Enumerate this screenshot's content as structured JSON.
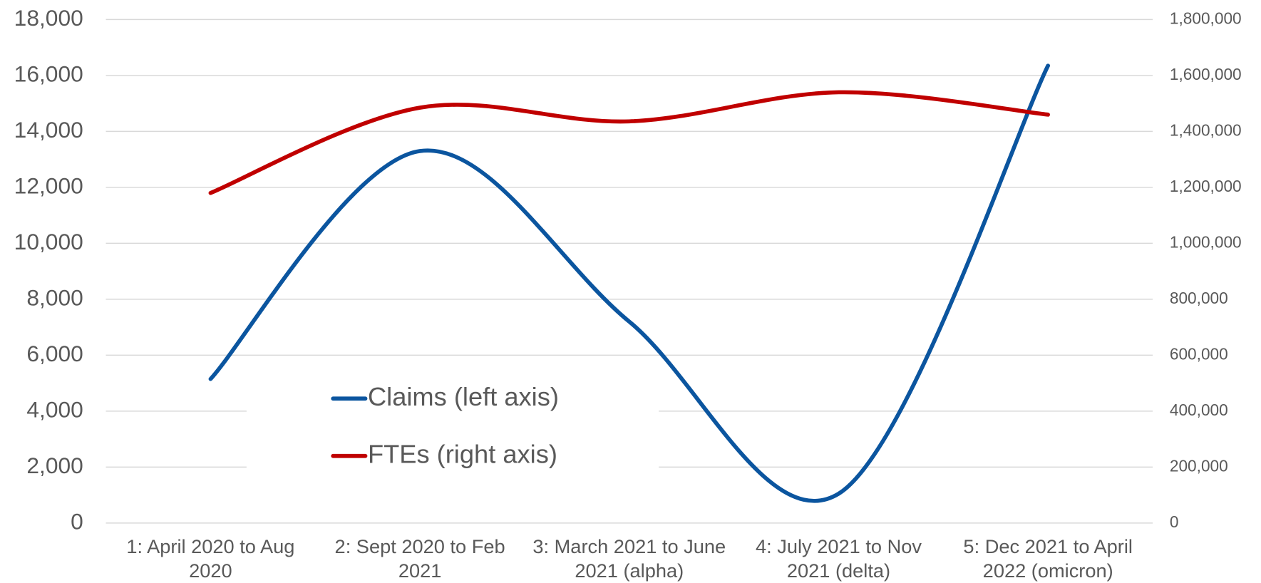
{
  "chart_data": {
    "type": "line",
    "categories": [
      "1: April 2020 to Aug 2020",
      "2: Sept 2020 to Feb 2021",
      "3: March 2021 to June 2021 (alpha)",
      "4: July 2021 to Nov 2021 (delta)",
      "5: Dec 2021 to April 2022 (omicron)"
    ],
    "series": [
      {
        "name": "Claims (left axis)",
        "color": "#0b559f",
        "values": [
          5150,
          13300,
          7200,
          1050,
          16350
        ]
      },
      {
        "name": "FTEs (right axis)",
        "color": "#c00000",
        "axis": "y2",
        "values": [
          1180000,
          1485000,
          1436000,
          1540000,
          1460000
        ]
      }
    ],
    "ylim": [
      0,
      18000
    ],
    "yticks": [
      0,
      {
        "value": 2000,
        "label": "2,000"
      },
      {
        "value": 4000,
        "label": "4,000"
      },
      {
        "value": 6000,
        "label": "6,000"
      },
      {
        "value": 8000,
        "label": "8,000"
      },
      {
        "value": 10000,
        "label": "10,000"
      },
      {
        "value": 12000,
        "label": "12,000"
      },
      {
        "value": 14000,
        "label": "14,000"
      },
      {
        "value": 16000,
        "label": "16,000"
      },
      {
        "value": 18000,
        "label": "18,000"
      }
    ],
    "y2lim": [
      0,
      1800000
    ],
    "y2ticks": [
      0,
      {
        "value": 200000,
        "label": "200,000"
      },
      {
        "value": 400000,
        "label": "400,000"
      },
      {
        "value": 600000,
        "label": "600,000"
      },
      {
        "value": 800000,
        "label": "800,000"
      },
      {
        "value": 1000000,
        "label": "1,000,000"
      },
      {
        "value": 1200000,
        "label": "1,200,000"
      },
      {
        "value": 1400000,
        "label": "1,400,000"
      },
      {
        "value": 1600000,
        "label": "1,600,000"
      },
      {
        "value": 1800000,
        "label": "1,800,000"
      }
    ],
    "grid": true,
    "smooth": true,
    "legend": "center"
  }
}
